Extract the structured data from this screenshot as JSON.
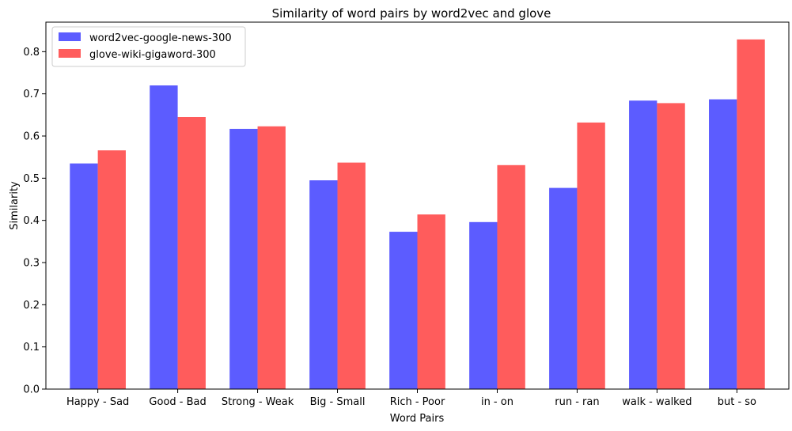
{
  "chart_data": {
    "type": "bar",
    "title": "Similarity of word pairs by word2vec and glove",
    "xlabel": "Word Pairs",
    "ylabel": "Similarity",
    "categories": [
      "Happy - Sad",
      "Good - Bad",
      "Strong - Weak",
      "Big - Small",
      "Rich - Poor",
      "in - on",
      "run - ran",
      "walk - walked",
      "but - so"
    ],
    "series": [
      {
        "name": "word2vec-google-news-300",
        "color": "#3333ff",
        "values": [
          0.535,
          0.72,
          0.617,
          0.495,
          0.373,
          0.396,
          0.477,
          0.684,
          0.687
        ]
      },
      {
        "name": "glove-wiki-gigaword-300",
        "color": "#ff3333",
        "values": [
          0.566,
          0.645,
          0.623,
          0.537,
          0.414,
          0.531,
          0.632,
          0.678,
          0.829
        ]
      }
    ],
    "ylim": [
      0,
      0.87
    ],
    "yticks": [
      "0.0",
      "0.1",
      "0.2",
      "0.3",
      "0.4",
      "0.5",
      "0.6",
      "0.7",
      "0.8"
    ],
    "grid": false,
    "legend_position": "top-left"
  }
}
